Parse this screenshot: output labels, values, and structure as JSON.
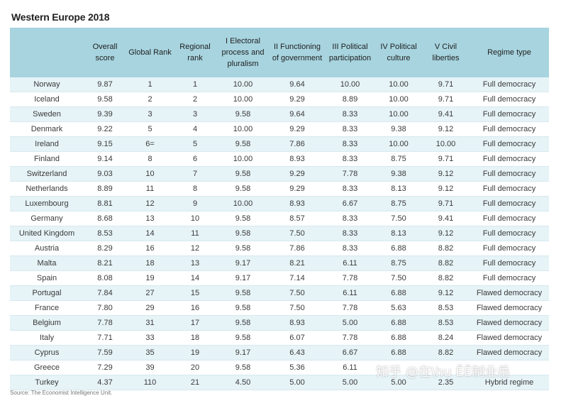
{
  "title": "Western Europe 2018",
  "columns": [
    "",
    "Overall score",
    "Global Rank",
    "Regional rank",
    "I Electoral process and pluralism",
    "II Functioning of government",
    "III Political participation",
    "IV Political culture",
    "V Civil liberties",
    "Regime type"
  ],
  "rows": [
    [
      "Norway",
      "9.87",
      "1",
      "1",
      "10.00",
      "9.64",
      "10.00",
      "10.00",
      "9.71",
      "Full democracy"
    ],
    [
      "Iceland",
      "9.58",
      "2",
      "2",
      "10.00",
      "9.29",
      "8.89",
      "10.00",
      "9.71",
      "Full democracy"
    ],
    [
      "Sweden",
      "9.39",
      "3",
      "3",
      "9.58",
      "9.64",
      "8.33",
      "10.00",
      "9.41",
      "Full democracy"
    ],
    [
      "Denmark",
      "9.22",
      "5",
      "4",
      "10.00",
      "9.29",
      "8.33",
      "9.38",
      "9.12",
      "Full democracy"
    ],
    [
      "Ireland",
      "9.15",
      "6=",
      "5",
      "9.58",
      "7.86",
      "8.33",
      "10.00",
      "10.00",
      "Full democracy"
    ],
    [
      "Finland",
      "9.14",
      "8",
      "6",
      "10.00",
      "8.93",
      "8.33",
      "8.75",
      "9.71",
      "Full democracy"
    ],
    [
      "Switzerland",
      "9.03",
      "10",
      "7",
      "9.58",
      "9.29",
      "7.78",
      "9.38",
      "9.12",
      "Full democracy"
    ],
    [
      "Netherlands",
      "8.89",
      "11",
      "8",
      "9.58",
      "9.29",
      "8.33",
      "8.13",
      "9.12",
      "Full democracy"
    ],
    [
      "Luxembourg",
      "8.81",
      "12",
      "9",
      "10.00",
      "8.93",
      "6.67",
      "8.75",
      "9.71",
      "Full democracy"
    ],
    [
      "Germany",
      "8.68",
      "13",
      "10",
      "9.58",
      "8.57",
      "8.33",
      "7.50",
      "9.41",
      "Full democracy"
    ],
    [
      "United Kingdom",
      "8.53",
      "14",
      "11",
      "9.58",
      "7.50",
      "8.33",
      "8.13",
      "9.12",
      "Full democracy"
    ],
    [
      "Austria",
      "8.29",
      "16",
      "12",
      "9.58",
      "7.86",
      "8.33",
      "6.88",
      "8.82",
      "Full democracy"
    ],
    [
      "Malta",
      "8.21",
      "18",
      "13",
      "9.17",
      "8.21",
      "6.11",
      "8.75",
      "8.82",
      "Full democracy"
    ],
    [
      "Spain",
      "8.08",
      "19",
      "14",
      "9.17",
      "7.14",
      "7.78",
      "7.50",
      "8.82",
      "Full democracy"
    ],
    [
      "Portugal",
      "7.84",
      "27",
      "15",
      "9.58",
      "7.50",
      "6.11",
      "6.88",
      "9.12",
      "Flawed democracy"
    ],
    [
      "France",
      "7.80",
      "29",
      "16",
      "9.58",
      "7.50",
      "7.78",
      "5.63",
      "8.53",
      "Flawed democracy"
    ],
    [
      "Belgium",
      "7.78",
      "31",
      "17",
      "9.58",
      "8.93",
      "5.00",
      "6.88",
      "8.53",
      "Flawed democracy"
    ],
    [
      "Italy",
      "7.71",
      "33",
      "18",
      "9.58",
      "6.07",
      "7.78",
      "6.88",
      "8.24",
      "Flawed democracy"
    ],
    [
      "Cyprus",
      "7.59",
      "35",
      "19",
      "9.17",
      "6.43",
      "6.67",
      "6.88",
      "8.82",
      "Flawed democracy"
    ],
    [
      "Greece",
      "7.29",
      "39",
      "20",
      "9.58",
      "5.36",
      "6.11",
      "",
      "",
      ""
    ],
    [
      "Turkey",
      "4.37",
      "110",
      "21",
      "4.50",
      "5.00",
      "5.00",
      "5.00",
      "2.35",
      "Hybrid regime"
    ]
  ],
  "source": "Source: The Economist Intelligence Unit.",
  "watermark": "知乎 @在\\hu ЁЁ制业岳",
  "colors": {
    "header_bg": "#a7d4df",
    "row_alt_bg": "#e6f3f7"
  }
}
